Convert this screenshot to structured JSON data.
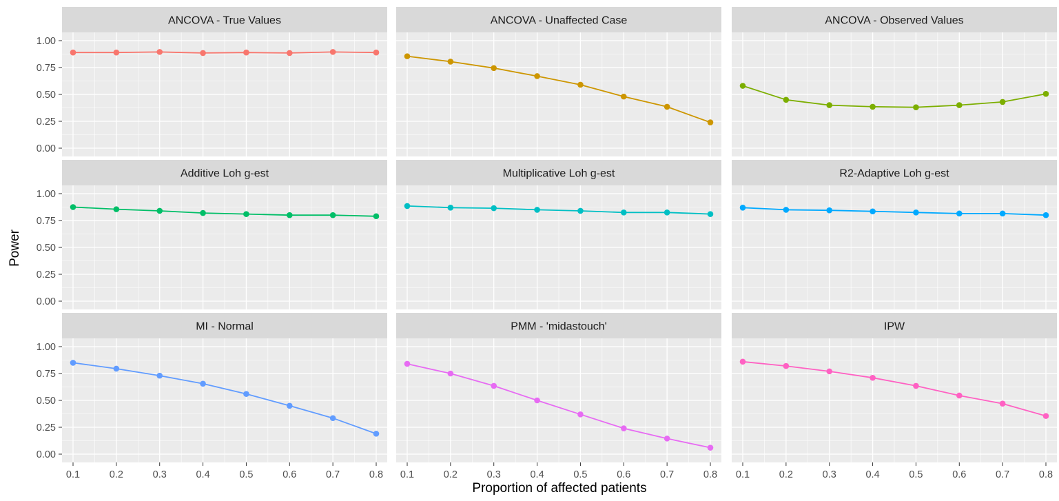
{
  "chart_data": {
    "type": "line",
    "facet_grid": {
      "rows": 3,
      "cols": 3
    },
    "xlabel": "Proportion of affected patients",
    "ylabel": "Power",
    "x": [
      0.1,
      0.2,
      0.3,
      0.4,
      0.5,
      0.6,
      0.7,
      0.8
    ],
    "x_tick_labels": [
      "0.1",
      "0.2",
      "0.3",
      "0.4",
      "0.5",
      "0.6",
      "0.7",
      "0.8"
    ],
    "ylim": [
      0,
      1
    ],
    "y_ticks": [
      0,
      0.25,
      0.5,
      0.75,
      1
    ],
    "y_tick_labels": [
      "0.00",
      "0.25",
      "0.50",
      "0.75",
      "1.00"
    ],
    "grid": true,
    "legend": "none",
    "colors": {
      "panel_background": "#ebebeb",
      "strip_background": "#d9d9d9",
      "gridline": "#ffffff",
      "axis_text": "#4d4d4d",
      "title_text": "#1a1a1a"
    },
    "panels": [
      {
        "title": "ANCOVA - True Values",
        "color": "#F8766D",
        "values": [
          0.89,
          0.89,
          0.895,
          0.885,
          0.89,
          0.885,
          0.895,
          0.89
        ]
      },
      {
        "title": "ANCOVA - Unaffected Case",
        "color": "#CD9600",
        "values": [
          0.855,
          0.805,
          0.745,
          0.67,
          0.59,
          0.48,
          0.385,
          0.24
        ]
      },
      {
        "title": "ANCOVA - Observed Values",
        "color": "#7CAE00",
        "values": [
          0.58,
          0.45,
          0.4,
          0.385,
          0.38,
          0.4,
          0.43,
          0.505
        ]
      },
      {
        "title": "Additive Loh g-est",
        "color": "#00BE67",
        "values": [
          0.875,
          0.855,
          0.84,
          0.82,
          0.81,
          0.8,
          0.8,
          0.79
        ]
      },
      {
        "title": "Multiplicative Loh g-est",
        "color": "#00BFC4",
        "values": [
          0.885,
          0.87,
          0.865,
          0.85,
          0.84,
          0.825,
          0.825,
          0.81
        ]
      },
      {
        "title": "R2-Adaptive Loh g-est",
        "color": "#00A9FF",
        "values": [
          0.87,
          0.85,
          0.845,
          0.835,
          0.825,
          0.815,
          0.815,
          0.8
        ]
      },
      {
        "title": "MI - Normal",
        "color": "#619CFF",
        "values": [
          0.85,
          0.795,
          0.73,
          0.655,
          0.56,
          0.45,
          0.335,
          0.19
        ]
      },
      {
        "title": "PMM - 'midastouch'",
        "color": "#E76BF3",
        "values": [
          0.84,
          0.75,
          0.635,
          0.5,
          0.37,
          0.24,
          0.145,
          0.06
        ]
      },
      {
        "title": "IPW",
        "color": "#FF61C3",
        "values": [
          0.86,
          0.82,
          0.77,
          0.71,
          0.635,
          0.545,
          0.47,
          0.355
        ]
      }
    ]
  }
}
